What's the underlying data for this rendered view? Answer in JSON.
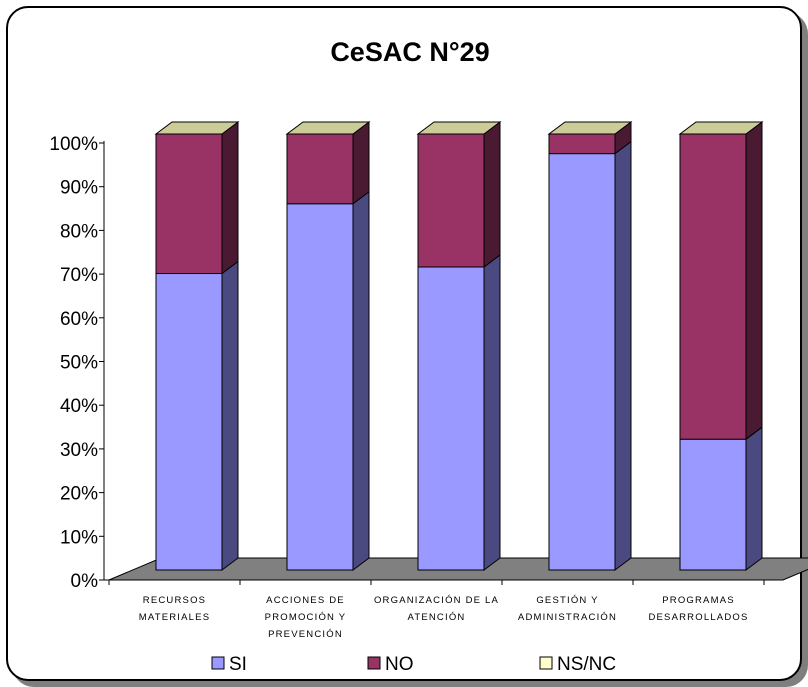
{
  "chart_data": {
    "type": "bar",
    "stacked": true,
    "three_d": true,
    "title": "CeSAC N°29",
    "ylim": [
      0,
      100
    ],
    "yticks": [
      "0%",
      "10%",
      "20%",
      "30%",
      "40%",
      "50%",
      "60%",
      "70%",
      "80%",
      "90%",
      "100%"
    ],
    "categories": [
      [
        "RECURSOS",
        "MATERIALES"
      ],
      [
        "ACCIONES DE",
        "PROMOCIÓN Y",
        "PREVENCIÓN"
      ],
      [
        "ORGANIZACIÓN DE LA",
        "ATENCIÓN"
      ],
      [
        "GESTIÓN Y",
        "ADMINISTRACIÓN"
      ],
      [
        "PROGRAMAS",
        "DESARROLLADOS"
      ]
    ],
    "series": [
      {
        "name": "SI",
        "values": [
          68,
          84,
          69.5,
          95.5,
          30
        ],
        "color": "#9999ff",
        "side": "#4a4a80"
      },
      {
        "name": "NO",
        "values": [
          32,
          16,
          30.5,
          4.5,
          70
        ],
        "color": "#993366",
        "side": "#4a1a33"
      },
      {
        "name": "NS/NC",
        "values": [
          0,
          0,
          0,
          0,
          0
        ],
        "color": "#ffffcc",
        "side": "#b0b090"
      }
    ],
    "top_face_color": "#cccc99",
    "floor_color": "#808080",
    "legend_position": "bottom",
    "grid": false
  }
}
